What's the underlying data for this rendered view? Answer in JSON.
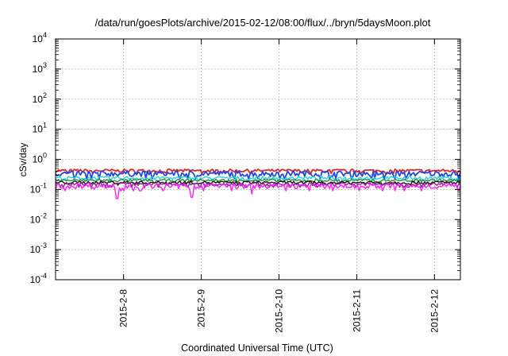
{
  "chart_data": {
    "type": "line",
    "title": "/data/run/goesPlots/archive/2015-02-12/08:00/flux/../bryn/5daysMoon.plot",
    "xlabel": "Coordinated Universal Time (UTC)",
    "ylabel": "cSv/day",
    "yscale": "log",
    "ylim": [
      0.0001,
      10000
    ],
    "xlim": [
      "2015-02-07 03:00",
      "2015-02-12 08:00"
    ],
    "grid": true,
    "y_ticks": [
      {
        "base": "10",
        "exp": "-4"
      },
      {
        "base": "10",
        "exp": "-3"
      },
      {
        "base": "10",
        "exp": "-2"
      },
      {
        "base": "10",
        "exp": "-1"
      },
      {
        "base": "10",
        "exp": "0"
      },
      {
        "base": "10",
        "exp": "1"
      },
      {
        "base": "10",
        "exp": "2"
      },
      {
        "base": "10",
        "exp": "3"
      },
      {
        "base": "10",
        "exp": "4"
      }
    ],
    "x_ticks": [
      {
        "label": "2015-2-8",
        "value": "2015-02-08 00:00"
      },
      {
        "label": "2015-2-9",
        "value": "2015-02-09 00:00"
      },
      {
        "label": "2015-2-10",
        "value": "2015-02-10 00:00"
      },
      {
        "label": "2015-2-11",
        "value": "2015-02-11 00:00"
      },
      {
        "label": "2015-2-12",
        "value": "2015-02-12 00:00"
      }
    ],
    "series": [
      {
        "color": "#e0262a",
        "approx_value": 0.42,
        "spread": 0.05
      },
      {
        "color": "#2148e0",
        "approx_value": 0.34,
        "spread": 0.07
      },
      {
        "color": "#22d6d6",
        "approx_value": 0.24,
        "spread": 0.03
      },
      {
        "color": "#2a8f3a",
        "approx_value": 0.2,
        "spread": 0.02
      },
      {
        "color": "#111111",
        "approx_value": 0.17,
        "spread": 0.02
      },
      {
        "color": "#8e1f8e",
        "approx_value": 0.15,
        "spread": 0.02
      },
      {
        "color": "#ff1aff",
        "approx_value": 0.13,
        "spread": 0.025,
        "dips": [
          {
            "x": "2015-02-07 22:00",
            "value": 0.05
          },
          {
            "x": "2015-02-08 21:00",
            "value": 0.055
          },
          {
            "x": "2015-02-09 15:30",
            "value": 0.07
          }
        ]
      }
    ]
  }
}
